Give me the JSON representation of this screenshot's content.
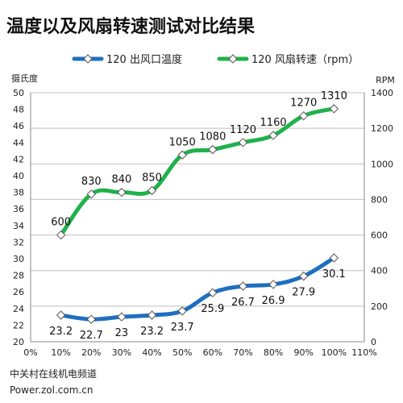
{
  "chart_data": {
    "type": "line",
    "title": "温度以及风扇转速测试对比结果",
    "x": [
      "0%",
      "10%",
      "20%",
      "30%",
      "40%",
      "50%",
      "60%",
      "70%",
      "80%",
      "90%",
      "100%",
      "110%"
    ],
    "xlim": [
      0,
      110
    ],
    "y_left": {
      "label": "摄氏度",
      "min": 20,
      "max": 50,
      "step": 2
    },
    "y_right": {
      "label": "RPM",
      "min": 0,
      "max": 1400,
      "step": 200
    },
    "grid": true,
    "legend_position": "top",
    "series": [
      {
        "name": "120 出风口温度",
        "axis": "left",
        "color": "#1f6fbf",
        "x": [
          10,
          20,
          30,
          40,
          50,
          60,
          70,
          80,
          90,
          100
        ],
        "values": [
          23.2,
          22.7,
          23,
          23.2,
          23.7,
          25.9,
          26.7,
          26.9,
          27.9,
          30.1
        ],
        "labels": [
          "23.2",
          "22.7",
          "23",
          "23.2",
          "23.7",
          "25.9",
          "26.7",
          "26.9",
          "27.9",
          "30.1"
        ]
      },
      {
        "name": "120 风扇转速（rpm）",
        "axis": "right",
        "color": "#1fb24a",
        "x": [
          10,
          20,
          30,
          40,
          50,
          60,
          70,
          80,
          90,
          100
        ],
        "values": [
          600,
          830,
          840,
          850,
          1050,
          1080,
          1120,
          1160,
          1270,
          1310
        ],
        "labels": [
          "600",
          "830",
          "840",
          "850",
          "1050",
          "1080",
          "1120",
          "1160",
          "1270",
          "1310"
        ]
      }
    ]
  },
  "footer": {
    "line1": "中关村在线机电频道",
    "line2": "Power.zol.com.cn"
  }
}
